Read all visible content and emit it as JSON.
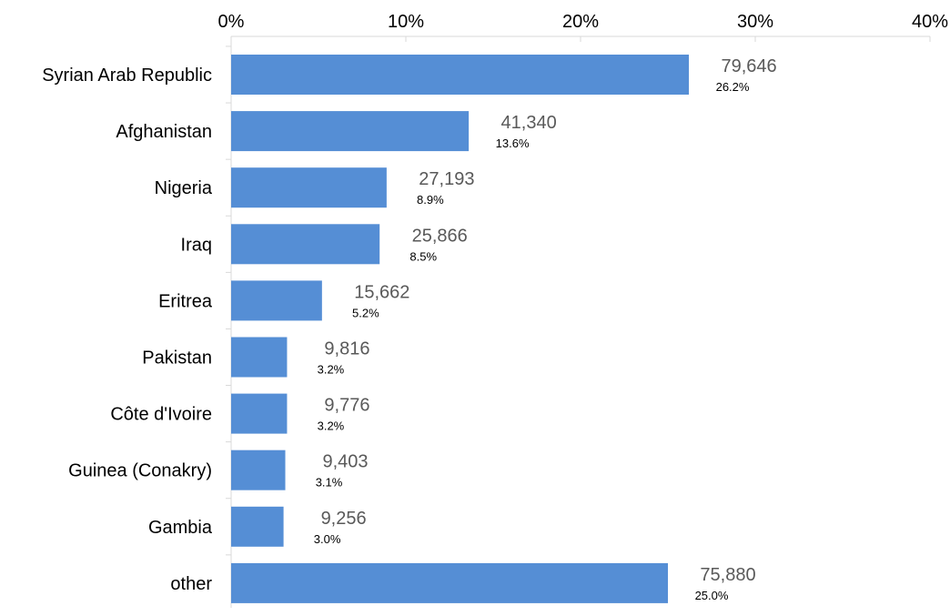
{
  "chart_data": {
    "type": "bar",
    "orientation": "horizontal",
    "categories": [
      "Syrian Arab Republic",
      "Afghanistan",
      "Nigeria",
      "Iraq",
      "Eritrea",
      "Pakistan",
      "Côte d'Ivoire",
      "Guinea (Conakry)",
      "Gambia",
      "other"
    ],
    "values": [
      26.2,
      13.6,
      8.9,
      8.5,
      5.2,
      3.2,
      3.2,
      3.1,
      3.0,
      25.0
    ],
    "counts": [
      79646,
      41340,
      27193,
      25866,
      15662,
      9816,
      9776,
      9403,
      9256,
      75880
    ],
    "count_labels": [
      "79,646",
      "41,340",
      "27,193",
      "25,866",
      "15,662",
      "9,816",
      "9,776",
      "9,403",
      "9,256",
      "75,880"
    ],
    "percent_labels": [
      "26.2%",
      "13.6%",
      "8.9%",
      "8.5%",
      "5.2%",
      "3.2%",
      "3.2%",
      "3.1%",
      "3.0%",
      "25.0%"
    ],
    "x_ticks": [
      0,
      10,
      20,
      30,
      40
    ],
    "x_tick_labels": [
      "0%",
      "10%",
      "20%",
      "30%",
      "40%"
    ],
    "xlim": [
      0,
      40
    ],
    "axis_position": "top",
    "grid": false,
    "legend": "none",
    "bar_color": "#558ed5",
    "count_label_color": "#595959",
    "percent_label_color": "#000000",
    "axis_color": "#d9d9d9",
    "category_label_color": "#000000"
  }
}
